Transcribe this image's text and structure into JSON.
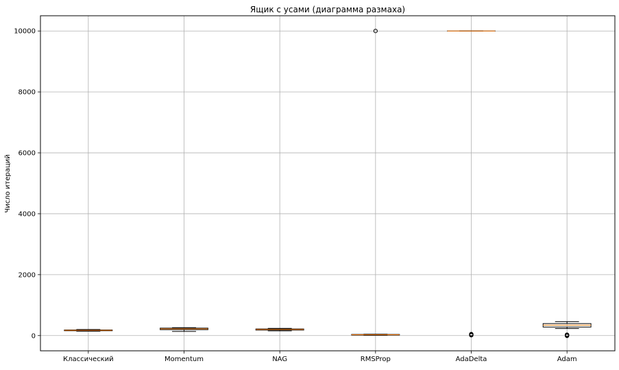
{
  "chart_data": {
    "type": "box",
    "title": "Ящик с усами (диаграмма размаха)",
    "xlabel": "",
    "ylabel": "Число итераций",
    "ylim": [
      -500,
      10500
    ],
    "yticks": [
      0,
      2000,
      4000,
      6000,
      8000,
      10000
    ],
    "ytick_labels": [
      "0",
      "2000",
      "4000",
      "6000",
      "8000",
      "10000"
    ],
    "grid": true,
    "categories": [
      "Классический",
      "Momentum",
      "NAG",
      "RMSProp",
      "AdaDelta",
      "Adam"
    ],
    "boxes": [
      {
        "category": "Классический",
        "whislo": 145,
        "q1": 158,
        "med": 172,
        "q3": 185,
        "whishi": 200,
        "fliers": []
      },
      {
        "category": "Momentum",
        "whislo": 135,
        "q1": 195,
        "med": 220,
        "q3": 245,
        "whishi": 258,
        "fliers": []
      },
      {
        "category": "NAG",
        "whislo": 155,
        "q1": 180,
        "med": 200,
        "q3": 218,
        "whishi": 238,
        "fliers": []
      },
      {
        "category": "RMSProp",
        "whislo": 10,
        "q1": 18,
        "med": 28,
        "q3": 38,
        "whishi": 45,
        "fliers": [
          10000
        ]
      },
      {
        "category": "AdaDelta",
        "whislo": 10000,
        "q1": 10000,
        "med": 10000,
        "q3": 10000,
        "whishi": 10000,
        "fliers": [
          10,
          20,
          30,
          40,
          50
        ]
      },
      {
        "category": "Adam",
        "whislo": 230,
        "q1": 280,
        "med": 340,
        "q3": 395,
        "whishi": 460,
        "fliers": [
          -10,
          0,
          10,
          20,
          30
        ]
      }
    ],
    "colors": {
      "box": "#000000",
      "median": "#ff7f0e",
      "grid": "#b0b0b0",
      "flier": "#000000"
    }
  }
}
